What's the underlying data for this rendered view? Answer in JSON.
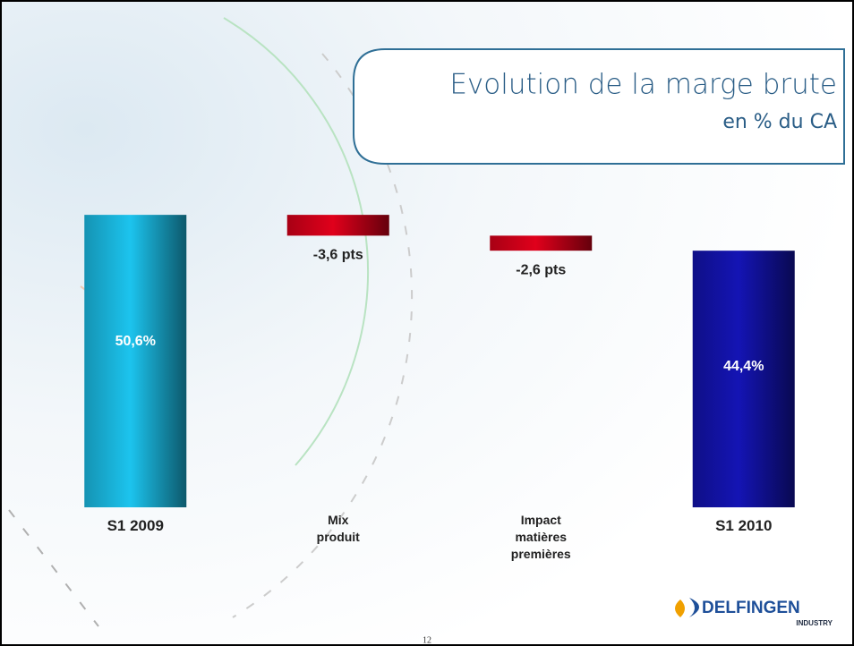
{
  "chart_data": {
    "type": "waterfall",
    "title": "Evolution de la marge brute",
    "subtitle": "en % du CA",
    "categories": [
      "S1 2009",
      "Mix\nproduit",
      "Impact\nmatières\npremières",
      "S1 2010"
    ],
    "values": [
      50.6,
      -3.6,
      -2.6,
      44.4
    ],
    "value_labels": [
      "50,6%",
      "-3,6 pts",
      "-2,6 pts",
      "44,4%"
    ],
    "totals": [
      true,
      false,
      false,
      true
    ],
    "colors": [
      "#1cc4ee",
      "#e0001b",
      "#e0001b",
      "#1414b4"
    ]
  },
  "logo": {
    "name": "DELFINGEN",
    "tagline": "INDUSTRY"
  },
  "page_number": "12"
}
